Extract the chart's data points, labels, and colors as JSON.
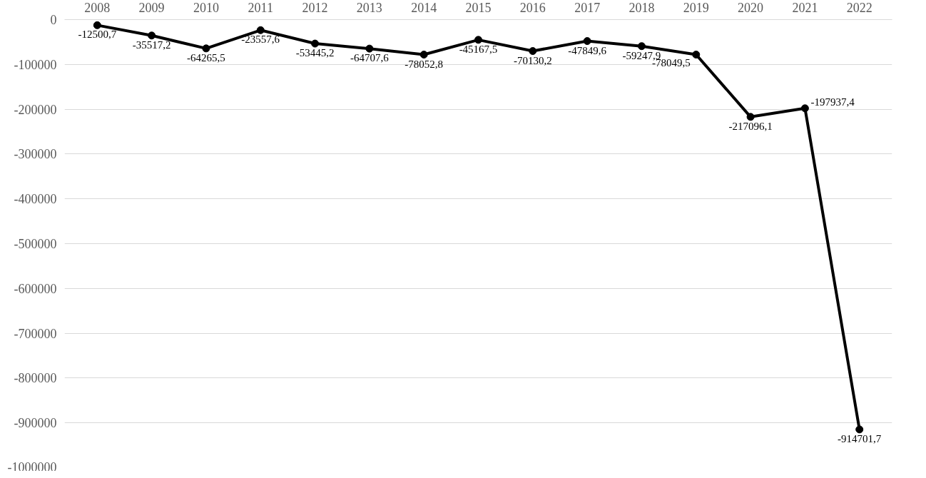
{
  "chart_data": {
    "type": "line",
    "categories": [
      "2008",
      "2009",
      "2010",
      "2011",
      "2012",
      "2013",
      "2014",
      "2015",
      "2016",
      "2017",
      "2018",
      "2019",
      "2020",
      "2021",
      "2022"
    ],
    "series": [
      {
        "color": "#000000",
        "values": [
          -12500.7,
          -35517.2,
          -64265.5,
          -23557.6,
          -53445.2,
          -64707.6,
          -78052.8,
          -45167.5,
          -70130.2,
          -47849.6,
          -59247.9,
          -78049.5,
          -217096.1,
          -197937.4,
          -914701.7
        ],
        "value_labels": [
          "-12500,7",
          "-35517,2",
          "-64265,5",
          "-23557,6",
          "-53445,2",
          "-64707,6",
          "-78052,8",
          "-45167,5",
          "-70130,2",
          "-47849,6",
          "-59247,9",
          "-78049,5",
          "-217096,1",
          "-197937,4",
          "-914701,7"
        ]
      }
    ],
    "ylim": [
      -1000000,
      0
    ],
    "yticks": [
      0,
      -100000,
      -200000,
      -300000,
      -400000,
      -500000,
      -600000,
      -700000,
      -800000,
      -900000,
      -1000000
    ],
    "grid": "y",
    "marker": "circle",
    "line_style": "solid"
  }
}
